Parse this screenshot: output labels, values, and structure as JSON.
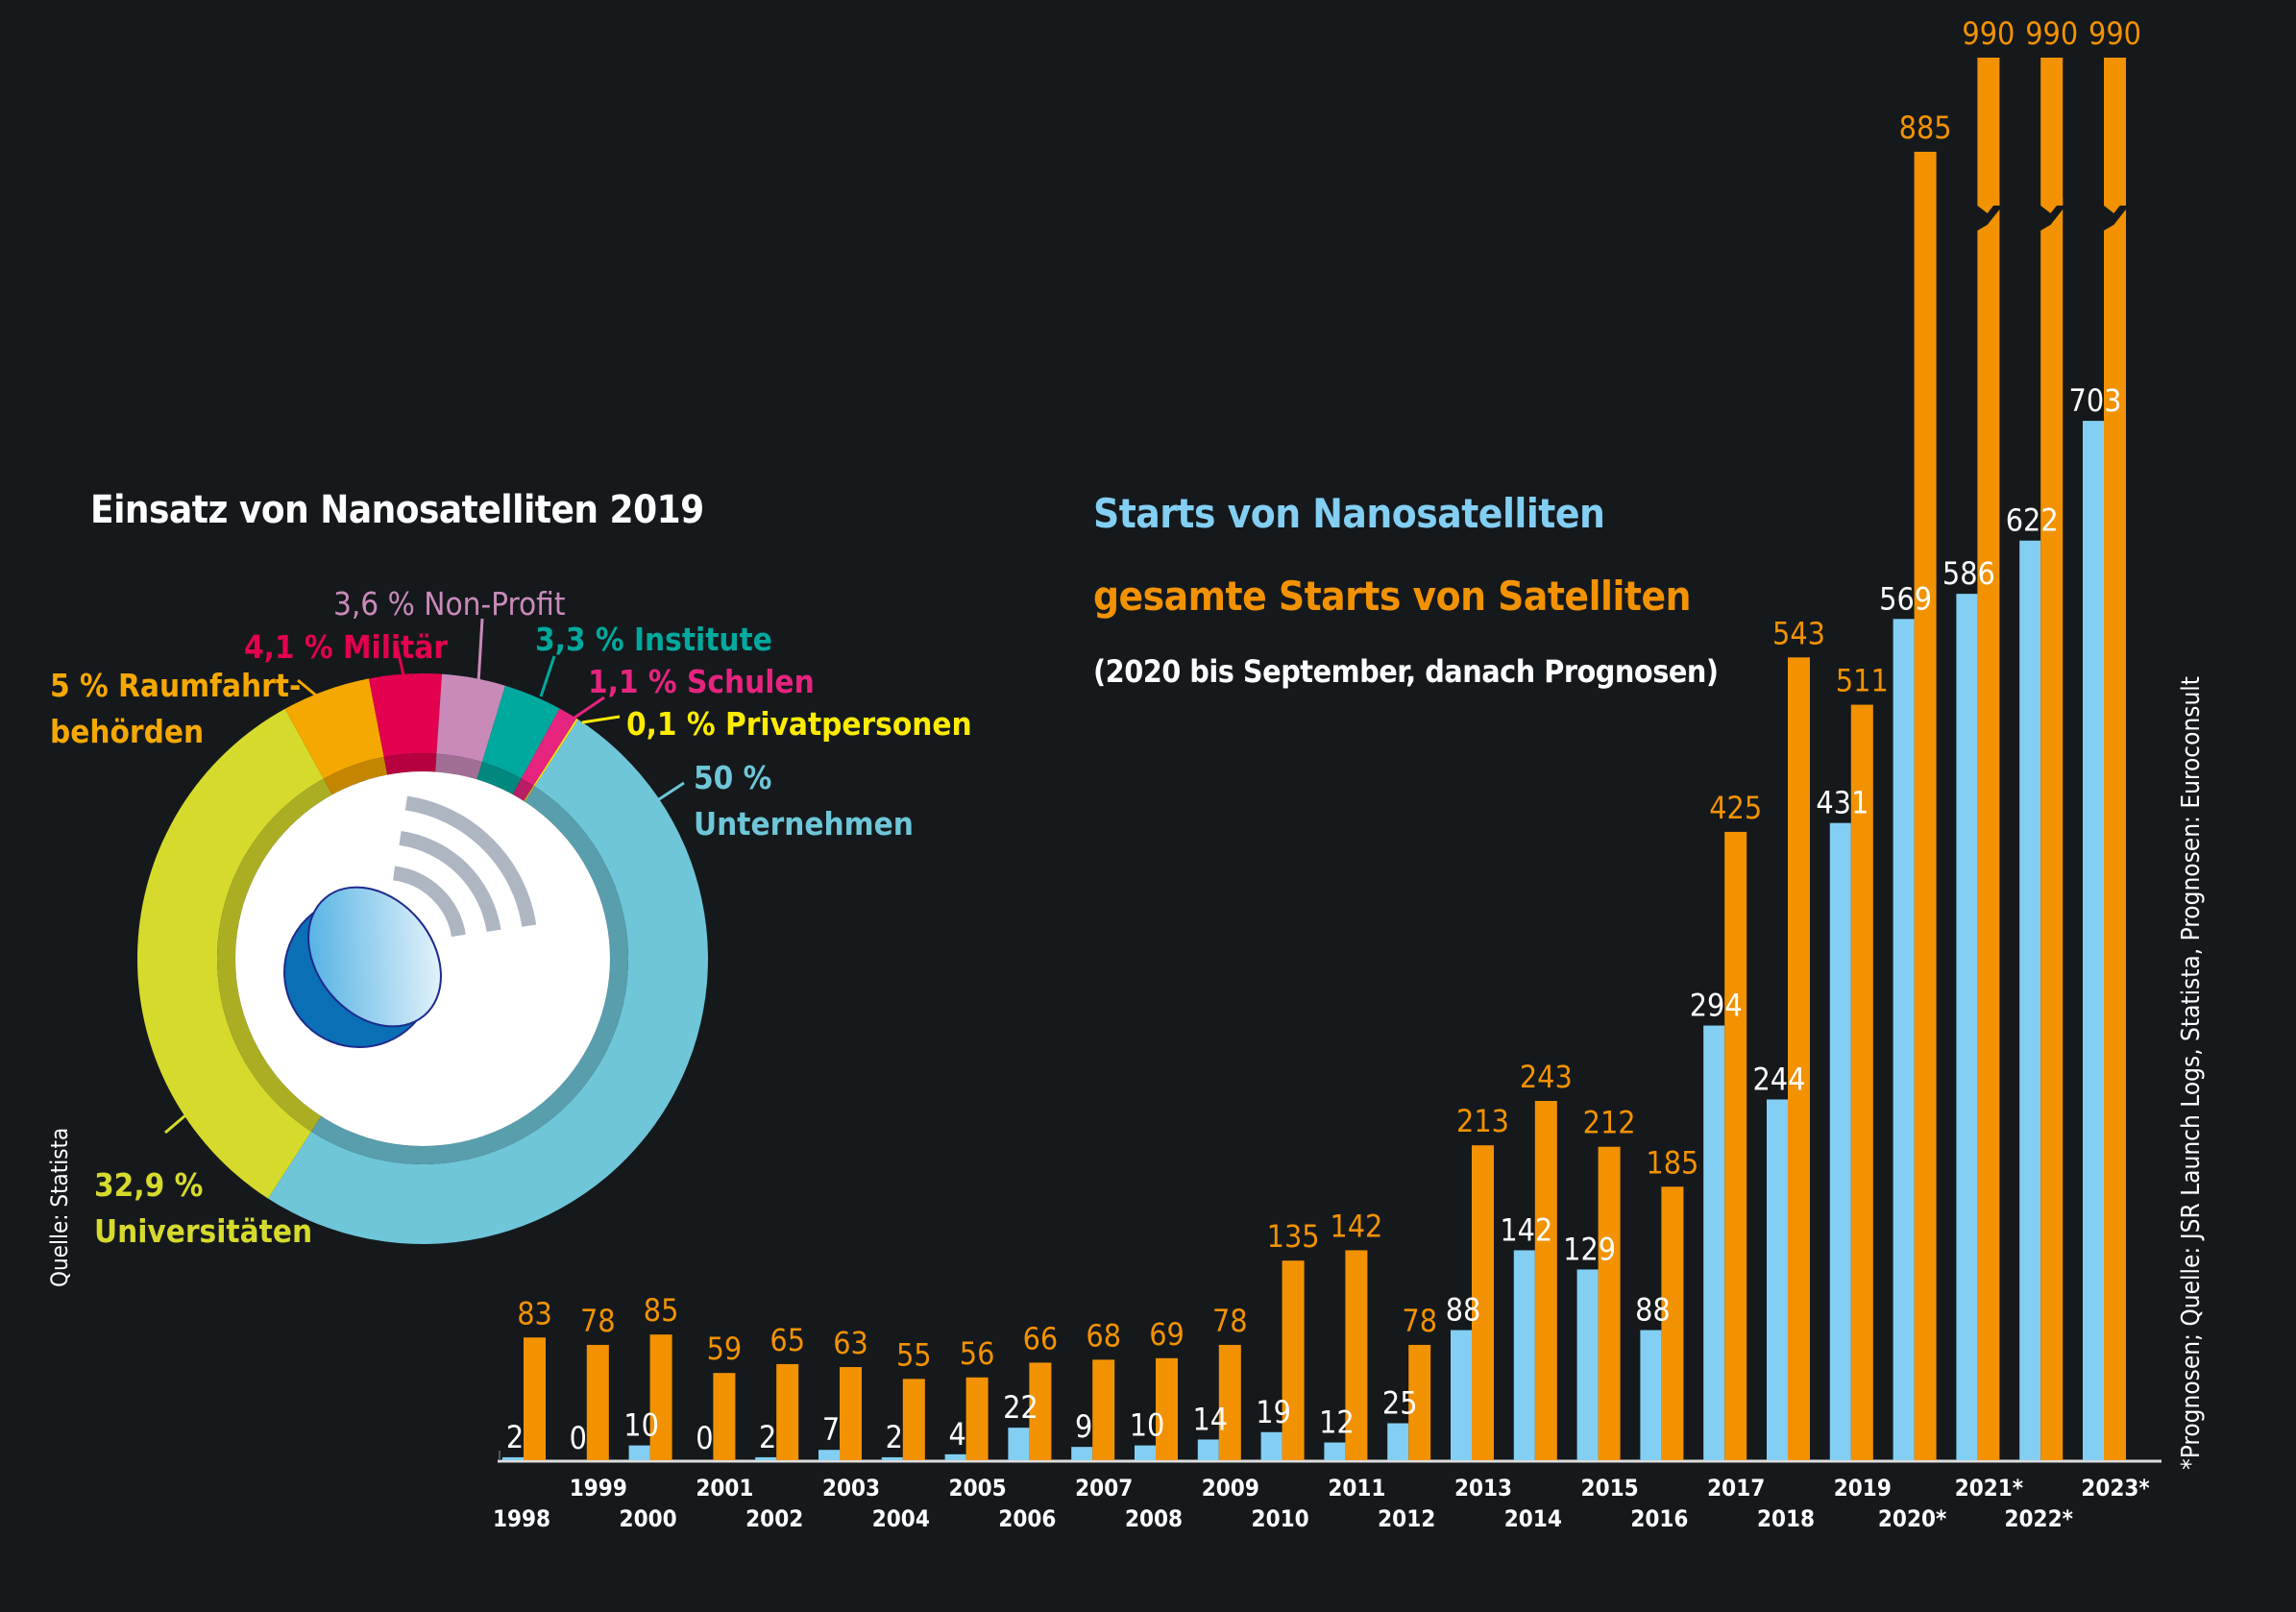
{
  "colors": {
    "background": "#15191c",
    "nano": "#83cff4",
    "total": "#f39200",
    "white": "#ffffff"
  },
  "chart_data": [
    {
      "type": "pie",
      "title": "Einsatz von Nanosatelliten 2019",
      "donut": true,
      "center_icon": "satellite-dish-icon",
      "slices": [
        {
          "name": "Unternehmen",
          "value": 50,
          "label": "50 %",
          "label_line2": "Unternehmen",
          "color": "#6ec6d8"
        },
        {
          "name": "Universitäten",
          "value": 32.9,
          "label": "32,9 %",
          "label_line2": "Universitäten",
          "color": "#d6da2c"
        },
        {
          "name": "Raumfahrtbehörden",
          "value": 5,
          "label": "5 % Raumfahrt-",
          "label_line2": "behörden",
          "color": "#f5a800"
        },
        {
          "name": "Militär",
          "value": 4.1,
          "label": "4,1 % Militär",
          "label_line2": "",
          "color": "#e3004f"
        },
        {
          "name": "Non-Profit",
          "value": 3.6,
          "label": "3,6 % Non-Profit",
          "label_line2": "",
          "color": "#c98aba"
        },
        {
          "name": "Institute",
          "value": 3.3,
          "label": "3,3 % Institute",
          "label_line2": "",
          "color": "#00a99d"
        },
        {
          "name": "Schulen",
          "value": 1.1,
          "label": "1,1 % Schulen",
          "label_line2": "",
          "color": "#e6247f"
        },
        {
          "name": "Privatpersonen",
          "value": 0.1,
          "label": "0,1 % Privatpersonen",
          "label_line2": "",
          "color": "#ffec00"
        }
      ],
      "source": "Quelle: Statista"
    },
    {
      "type": "bar",
      "title": "Starts von Nanosatelliten",
      "title2": "gesamte Starts von Satelliten",
      "subtitle": "(2020 bis September, danach Prognosen)",
      "xlabel": "",
      "ylabel": "",
      "ylim": [
        0,
        990
      ],
      "grid": false,
      "axis_break_above": 900,
      "categories": [
        "1998",
        "1999",
        "2000",
        "2001",
        "2002",
        "2003",
        "2004",
        "2005",
        "2006",
        "2007",
        "2008",
        "2009",
        "2010",
        "2011",
        "2012",
        "2013",
        "2014",
        "2015",
        "2016",
        "2017",
        "2018",
        "2019",
        "2020*",
        "2021*",
        "2022*",
        "2023*"
      ],
      "series": [
        {
          "name": "Starts von Nanosatelliten",
          "color": "#83cff4",
          "label_color": "#ffffff",
          "values": [
            2,
            0,
            10,
            0,
            2,
            7,
            2,
            4,
            22,
            9,
            10,
            14,
            19,
            12,
            25,
            88,
            142,
            129,
            88,
            294,
            244,
            431,
            569,
            586,
            622,
            703
          ]
        },
        {
          "name": "gesamte Starts von Satelliten",
          "color": "#f39200",
          "label_color": "#f39200",
          "values": [
            83,
            78,
            85,
            59,
            65,
            63,
            55,
            56,
            66,
            68,
            69,
            78,
            135,
            142,
            78,
            213,
            243,
            212,
            185,
            425,
            543,
            511,
            885,
            990,
            990,
            990
          ]
        }
      ],
      "source": "*Prognosen; Quelle: JSR Launch Logs, Statista, Prognosen: Euroconsult"
    }
  ]
}
